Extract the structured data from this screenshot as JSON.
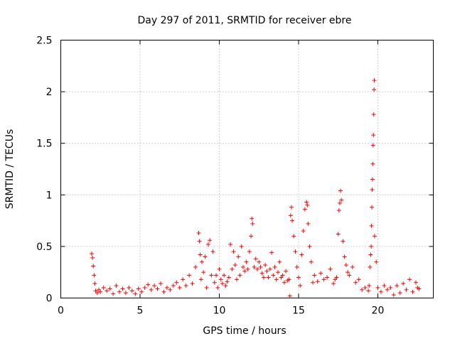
{
  "chart_data": {
    "type": "scatter",
    "title": "Day 297 of 2011, SRMTID for receiver ebre",
    "xlabel": "GPS time / hours",
    "ylabel": "SRMTID / TECUs",
    "xlim": [
      0,
      23.5
    ],
    "ylim": [
      0,
      2.5
    ],
    "xticks": [
      0,
      5,
      10,
      15,
      20
    ],
    "xtick_labels": [
      "0",
      "5",
      "10",
      "15",
      "20"
    ],
    "yticks": [
      0,
      0.5,
      1,
      1.5,
      2,
      2.5
    ],
    "ytick_labels": [
      "0",
      "0.5",
      "1",
      "1.5",
      "2",
      "2.5"
    ],
    "grid": true,
    "marker": "+",
    "series": [
      {
        "name": "SRMTID",
        "color": "#ff0000",
        "x": [
          1.95,
          2.0,
          2.05,
          2.1,
          2.15,
          2.2,
          2.3,
          2.4,
          2.5,
          2.7,
          2.9,
          3.1,
          3.3,
          3.5,
          3.7,
          3.9,
          4.1,
          4.3,
          4.5,
          4.7,
          4.9,
          5.1,
          5.3,
          5.5,
          5.7,
          5.9,
          6.1,
          6.3,
          6.5,
          6.7,
          6.9,
          7.1,
          7.3,
          7.5,
          7.7,
          7.9,
          8.1,
          8.3,
          8.5,
          8.7,
          8.75,
          8.8,
          8.85,
          8.9,
          9.0,
          9.1,
          9.2,
          9.3,
          9.4,
          9.5,
          9.6,
          9.7,
          9.8,
          9.9,
          10.0,
          10.1,
          10.2,
          10.3,
          10.4,
          10.5,
          10.6,
          10.7,
          10.8,
          10.9,
          11.0,
          11.1,
          11.2,
          11.3,
          11.4,
          11.5,
          11.6,
          11.7,
          11.8,
          11.9,
          12.0,
          12.05,
          12.1,
          12.2,
          12.3,
          12.4,
          12.5,
          12.6,
          12.7,
          12.8,
          12.9,
          13.0,
          13.1,
          13.2,
          13.3,
          13.4,
          13.5,
          13.6,
          13.7,
          13.8,
          13.9,
          14.0,
          14.1,
          14.2,
          14.3,
          14.4,
          14.45,
          14.5,
          14.55,
          14.6,
          14.7,
          14.8,
          14.9,
          15.0,
          15.1,
          15.2,
          15.3,
          15.4,
          15.5,
          15.55,
          15.6,
          15.7,
          15.8,
          15.9,
          16.0,
          16.2,
          16.4,
          16.6,
          16.8,
          17.0,
          17.2,
          17.3,
          17.4,
          17.5,
          17.55,
          17.6,
          17.65,
          17.7,
          17.8,
          17.9,
          18.0,
          18.1,
          18.2,
          18.4,
          18.6,
          18.8,
          19.0,
          19.2,
          19.4,
          19.45,
          19.5,
          19.55,
          19.58,
          19.6,
          19.62,
          19.64,
          19.66,
          19.68,
          19.7,
          19.72,
          19.74,
          19.76,
          19.78,
          19.8,
          19.9,
          20.0,
          20.2,
          20.4,
          20.6,
          20.8,
          21.0,
          21.2,
          21.4,
          21.6,
          21.8,
          22.0,
          22.2,
          22.4,
          22.5,
          22.6
        ],
        "y": [
          0.43,
          0.39,
          0.31,
          0.22,
          0.14,
          0.07,
          0.05,
          0.08,
          0.06,
          0.1,
          0.07,
          0.09,
          0.04,
          0.12,
          0.06,
          0.09,
          0.05,
          0.1,
          0.07,
          0.04,
          0.09,
          0.06,
          0.1,
          0.13,
          0.08,
          0.12,
          0.09,
          0.14,
          0.06,
          0.1,
          0.08,
          0.12,
          0.15,
          0.1,
          0.18,
          0.12,
          0.22,
          0.14,
          0.3,
          0.63,
          0.55,
          0.42,
          0.18,
          0.35,
          0.25,
          0.4,
          0.1,
          0.52,
          0.56,
          0.22,
          0.45,
          0.15,
          0.22,
          0.1,
          0.28,
          0.18,
          0.14,
          0.22,
          0.12,
          0.16,
          0.2,
          0.52,
          0.28,
          0.45,
          0.32,
          0.18,
          0.4,
          0.22,
          0.5,
          0.3,
          0.26,
          0.35,
          0.28,
          0.45,
          0.6,
          0.77,
          0.72,
          0.3,
          0.38,
          0.28,
          0.35,
          0.3,
          0.24,
          0.2,
          0.32,
          0.26,
          0.2,
          0.28,
          0.44,
          0.22,
          0.3,
          0.18,
          0.25,
          0.35,
          0.2,
          0.22,
          0.15,
          0.26,
          0.17,
          0.18,
          0.02,
          0.8,
          0.88,
          0.75,
          0.6,
          0.45,
          0.3,
          0.2,
          0.12,
          0.42,
          0.65,
          0.86,
          0.93,
          0.9,
          0.72,
          0.5,
          0.35,
          0.15,
          0.22,
          0.16,
          0.24,
          0.18,
          0.2,
          0.28,
          0.14,
          0.18,
          0.2,
          0.62,
          0.85,
          0.92,
          1.04,
          0.95,
          0.55,
          0.4,
          0.32,
          0.25,
          0.22,
          0.3,
          0.15,
          0.18,
          0.08,
          0.1,
          0.07,
          0.12,
          0.3,
          0.42,
          0.5,
          0.7,
          0.88,
          1.05,
          1.15,
          1.3,
          1.48,
          1.58,
          1.78,
          2.02,
          2.11,
          0.6,
          0.35,
          0.1,
          0.06,
          0.12,
          0.08,
          0.1,
          0.03,
          0.12,
          0.05,
          0.14,
          0.08,
          0.18,
          0.06,
          0.15,
          0.1,
          0.09
        ]
      }
    ]
  }
}
